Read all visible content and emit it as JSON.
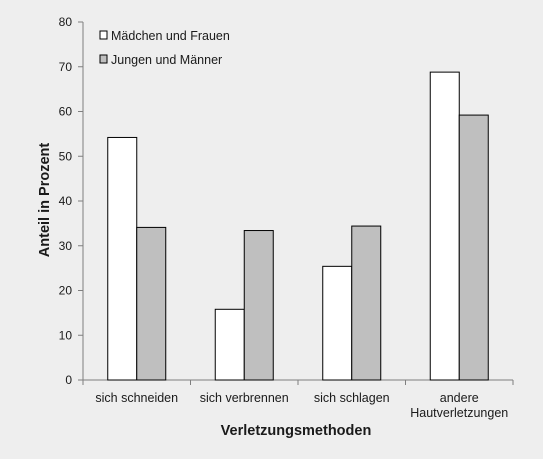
{
  "chart_data": {
    "type": "bar",
    "categories": [
      [
        "sich schneiden"
      ],
      [
        "sich verbrennen"
      ],
      [
        "sich schlagen"
      ],
      [
        "andere",
        "Hautverletzungen"
      ]
    ],
    "series": [
      {
        "name": "Mädchen und Frauen",
        "values": [
          54.2,
          15.8,
          25.4,
          68.8
        ],
        "color": "#ffffff"
      },
      {
        "name": "Jungen und Männer",
        "values": [
          34.1,
          33.4,
          34.4,
          59.2
        ],
        "color": "#bfbfbf"
      }
    ],
    "title": "",
    "xlabel": "Verletzungsmethoden",
    "ylabel": "Anteil in Prozent",
    "ylim": [
      0,
      80
    ],
    "yticks": [
      0,
      10,
      20,
      30,
      40,
      50,
      60,
      70,
      80
    ],
    "legend_position": "top-left",
    "grid": false,
    "colors": {
      "background": "#eeeeee",
      "bar_outline": "#000000",
      "axis": "#7f7f7f"
    }
  }
}
